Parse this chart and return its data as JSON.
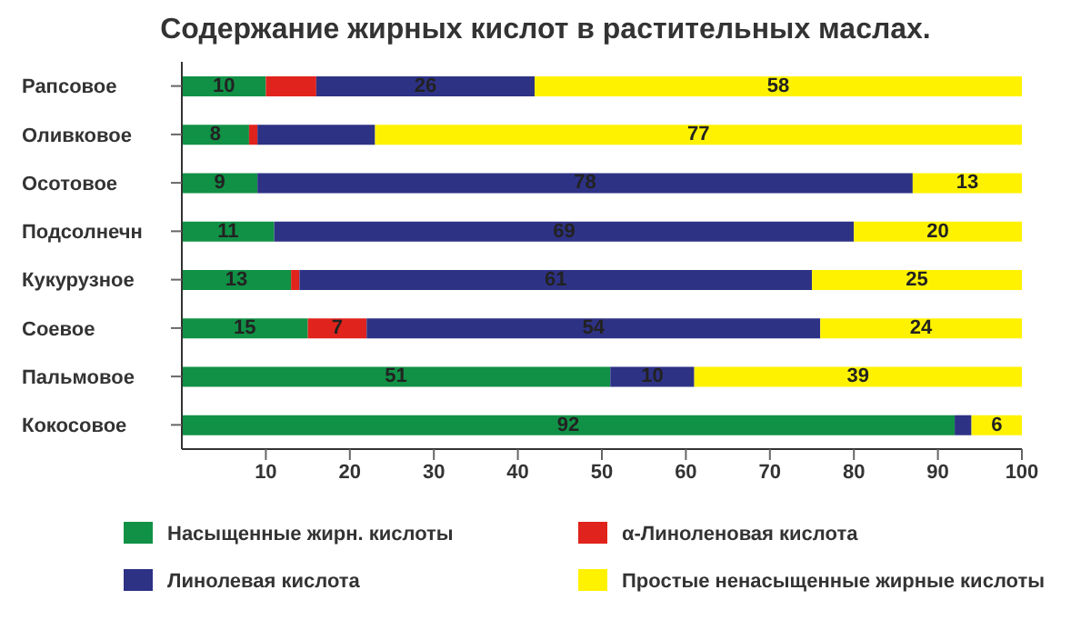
{
  "chart_data": {
    "type": "bar",
    "title": "Содержание жирных кислот в растительных маслах.",
    "orientation": "horizontal",
    "stacked": true,
    "categories": [
      "Рапсовое",
      "Оливковое",
      "Осотовое",
      "Подсолнечн",
      "Кукурузное",
      "Соевое",
      "Пальмовое",
      "Кокосовое"
    ],
    "series": [
      {
        "name": "Насыщенные жирн. кислоты",
        "color": "#119146",
        "values": [
          10,
          8,
          9,
          11,
          13,
          15,
          51,
          92
        ],
        "value_labels": [
          "10",
          "8",
          "9",
          "11",
          "13",
          "15",
          "51",
          "92"
        ]
      },
      {
        "name": "α-Линоленовая кислота",
        "color": "#e0231c",
        "values": [
          6,
          1,
          0,
          0,
          1,
          7,
          0,
          0
        ],
        "value_labels": [
          null,
          null,
          null,
          null,
          null,
          "7",
          null,
          null
        ]
      },
      {
        "name": "Линолевая кислота",
        "color": "#2e3285",
        "values": [
          26,
          14,
          78,
          69,
          61,
          54,
          10,
          2
        ],
        "value_labels": [
          "26",
          null,
          "78",
          "69",
          "61",
          "54",
          "10",
          null
        ]
      },
      {
        "name": "Простые  ненасыщенные жирные кислоты",
        "color": "#fff200",
        "values": [
          58,
          77,
          13,
          20,
          25,
          24,
          39,
          6
        ],
        "value_labels": [
          "58",
          "77",
          "13",
          "20",
          "25",
          "24",
          "39",
          "6"
        ]
      }
    ],
    "xlim": [
      0,
      100
    ],
    "xticks": [
      10,
      20,
      30,
      40,
      50,
      60,
      70,
      80,
      90,
      100
    ],
    "grid": false,
    "legend": "bottom"
  }
}
